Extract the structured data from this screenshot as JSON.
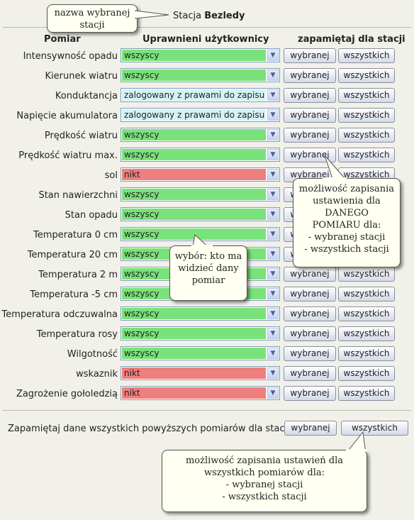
{
  "station": {
    "label": "Stacja",
    "name": "Bezledy"
  },
  "columns": {
    "measurement": "Pomiar",
    "users": "Uprawnieni użytkownicy",
    "save": "zapamiętaj dla stacji"
  },
  "buttons": {
    "selected": "wybranej",
    "all": "wszystkich"
  },
  "options": {
    "all_users": "wszyscy",
    "logged_write": "zalogowany z prawami do zapisu",
    "nobody": "nikt"
  },
  "colors": {
    "all_users": "#7ae27a",
    "logged_write": "#d4f3f6",
    "nobody": "#ee7f7f"
  },
  "rows": [
    {
      "name": "Intensywność opadu",
      "value": "wszyscy",
      "level": "all_users"
    },
    {
      "name": "Kierunek wiatru",
      "value": "wszyscy",
      "level": "all_users"
    },
    {
      "name": "Konduktancja",
      "value": "zalogowany z prawami do zapisu",
      "level": "logged_write"
    },
    {
      "name": "Napięcie akumulatora",
      "value": "zalogowany z prawami do zapisu",
      "level": "logged_write"
    },
    {
      "name": "Prędkość wiatru",
      "value": "wszyscy",
      "level": "all_users"
    },
    {
      "name": "Prędkość wiatru max.",
      "value": "wszyscy",
      "level": "all_users"
    },
    {
      "name": "sol",
      "value": "nikt",
      "level": "nobody"
    },
    {
      "name": "Stan nawierzchni",
      "value": "wszyscy",
      "level": "all_users"
    },
    {
      "name": "Stan opadu",
      "value": "wszyscy",
      "level": "all_users"
    },
    {
      "name": "Temperatura 0 cm",
      "value": "wszyscy",
      "level": "all_users"
    },
    {
      "name": "Temperatura 20 cm",
      "value": "wszyscy",
      "level": "all_users"
    },
    {
      "name": "Temperatura 2 m",
      "value": "wszyscy",
      "level": "all_users"
    },
    {
      "name": "Temperatura -5 cm",
      "value": "wszyscy",
      "level": "all_users"
    },
    {
      "name": "Temperatura odczuwalna",
      "value": "wszyscy",
      "level": "all_users"
    },
    {
      "name": "Temperatura rosy",
      "value": "wszyscy",
      "level": "all_users"
    },
    {
      "name": "Wilgotność",
      "value": "wszyscy",
      "level": "all_users"
    },
    {
      "name": "wskaznik",
      "value": "nikt",
      "level": "nobody"
    },
    {
      "name": "Zagrożenie gołoledzią",
      "value": "nikt",
      "level": "nobody"
    }
  ],
  "footer": {
    "text": "Zapamiętaj dane wszystkich powyższych pomiarów dla stacji",
    "selected": "wybranej",
    "all": "wszystkich"
  },
  "callouts": {
    "station_name": [
      "nazwa wybranej",
      "stacji"
    ],
    "per_measurement": [
      "możliwość zapisania",
      "ustawienia dla",
      "DANEGO",
      "POMIARU dla:",
      "- wybranej stacji",
      "- wszystkich stacji"
    ],
    "choice": [
      "wybór: kto ma",
      "widzieć dany",
      "pomiar"
    ],
    "all_measurements": [
      "możliwość zapisania ustawień dla",
      "wszystkich pomiarów dla:",
      "- wybranej stacji",
      "- wszystkich stacji"
    ]
  }
}
